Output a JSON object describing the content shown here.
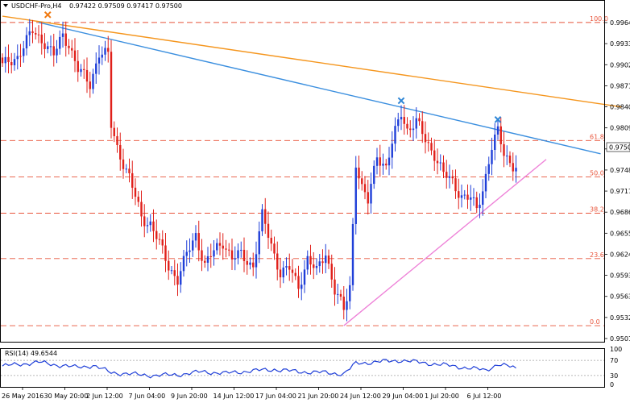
{
  "header": {
    "symbol": "USDCHF-Pro,H4",
    "ohlc": "0.97422 0.97509 0.97417 0.97500"
  },
  "colors": {
    "bull": "#1f3fd8",
    "bear": "#e0201a",
    "fib": "#e8543a",
    "trend_blue": "#3b8fdf",
    "trend_orange": "#f5961e",
    "support_pink": "#ee82d8",
    "marker_orange": "#f07a12",
    "marker_blue": "#2f86d6",
    "rsi_line": "#1f3fd8",
    "price_label_bg": "#ffffff"
  },
  "chart_data": {
    "type": "candlestick",
    "symbol": "USDCHF-Pro",
    "timeframe": "H4",
    "ylim": [
      0.9501,
      0.9974
    ],
    "y_ticks": [
      "0.99640",
      "0.99330",
      "0.99020",
      "0.98710",
      "0.98400",
      "0.98090",
      "0.97790",
      "0.97480",
      "0.97170",
      "0.96860",
      "0.96550",
      "0.96240",
      "0.95930",
      "0.95630",
      "0.95320",
      "0.95010"
    ],
    "x_labels": [
      "26 May 2016",
      "30 May 20:00",
      "2 Jun 12:00",
      "7 Jun 04:00",
      "9 Jun 20:00",
      "14 Jun 12:00",
      "17 Jun 04:00",
      "21 Jun 20:00",
      "24 Jun 12:00",
      "29 Jun 04:00",
      "1 Jul 20:00",
      "6 Jul 12:00"
    ],
    "current_price": "0.97500",
    "fib_levels": [
      {
        "label": "100.0",
        "value": 0.9958
      },
      {
        "label": "61.8",
        "value": 0.9789
      },
      {
        "label": "50.0",
        "value": 0.9737
      },
      {
        "label": "38.2",
        "value": 0.9685
      },
      {
        "label": "23.6",
        "value": 0.962
      },
      {
        "label": "0.0",
        "value": 0.9524
      }
    ],
    "trendlines": [
      {
        "name": "orange",
        "from": {
          "bar": 0,
          "price": 0.9967
        },
        "to": {
          "bar": 205,
          "price": 0.9837
        }
      },
      {
        "name": "blue",
        "from": {
          "bar": 12,
          "price": 0.9958
        },
        "to": {
          "bar": 198,
          "price": 0.977
        }
      },
      {
        "name": "pink",
        "from": {
          "bar": 113,
          "price": 0.9524
        },
        "to": {
          "bar": 180,
          "price": 0.9762
        }
      }
    ],
    "markers": [
      {
        "bar": 15,
        "price": 0.9969,
        "color": "orange"
      },
      {
        "bar": 132,
        "price": 0.9846,
        "color": "blue"
      },
      {
        "bar": 164,
        "price": 0.9819,
        "color": "blue"
      }
    ],
    "anchors": [
      [
        0,
        0.9895
      ],
      [
        5,
        0.991
      ],
      [
        10,
        0.9945
      ],
      [
        14,
        0.993
      ],
      [
        17,
        0.991
      ],
      [
        20,
        0.994
      ],
      [
        22,
        0.9928
      ],
      [
        25,
        0.989
      ],
      [
        29,
        0.987
      ],
      [
        32,
        0.9915
      ],
      [
        35,
        0.991
      ],
      [
        36,
        0.981
      ],
      [
        38,
        0.978
      ],
      [
        42,
        0.9735
      ],
      [
        46,
        0.968
      ],
      [
        49,
        0.967
      ],
      [
        52,
        0.964
      ],
      [
        55,
        0.961
      ],
      [
        58,
        0.959
      ],
      [
        61,
        0.9625
      ],
      [
        64,
        0.9655
      ],
      [
        67,
        0.961
      ],
      [
        70,
        0.963
      ],
      [
        73,
        0.9645
      ],
      [
        76,
        0.962
      ],
      [
        79,
        0.9625
      ],
      [
        83,
        0.961
      ],
      [
        86,
        0.968
      ],
      [
        89,
        0.964
      ],
      [
        92,
        0.96
      ],
      [
        95,
        0.9605
      ],
      [
        98,
        0.958
      ],
      [
        101,
        0.962
      ],
      [
        104,
        0.96
      ],
      [
        107,
        0.963
      ],
      [
        110,
        0.9575
      ],
      [
        113,
        0.9545
      ],
      [
        115,
        0.958
      ],
      [
        117,
        0.976
      ],
      [
        119,
        0.972
      ],
      [
        121,
        0.97
      ],
      [
        124,
        0.977
      ],
      [
        127,
        0.975
      ],
      [
        130,
        0.98
      ],
      [
        132,
        0.983
      ],
      [
        134,
        0.9805
      ],
      [
        137,
        0.9815
      ],
      [
        140,
        0.979
      ],
      [
        143,
        0.977
      ],
      [
        146,
        0.974
      ],
      [
        149,
        0.973
      ],
      [
        152,
        0.971
      ],
      [
        155,
        0.9705
      ],
      [
        157,
        0.969
      ],
      [
        159,
        0.972
      ],
      [
        162,
        0.978
      ],
      [
        164,
        0.98
      ],
      [
        166,
        0.977
      ],
      [
        168,
        0.976
      ],
      [
        170,
        0.975
      ]
    ],
    "rsi": {
      "label": "RSI(14) 49.6544",
      "current": 49.6544,
      "ylim": [
        0,
        100
      ],
      "ticks": [
        "100",
        "70",
        "30",
        "0"
      ],
      "anchors": [
        [
          0,
          55
        ],
        [
          6,
          60
        ],
        [
          12,
          65
        ],
        [
          18,
          58
        ],
        [
          24,
          52
        ],
        [
          30,
          56
        ],
        [
          36,
          38
        ],
        [
          42,
          34
        ],
        [
          50,
          30
        ],
        [
          58,
          32
        ],
        [
          66,
          40
        ],
        [
          74,
          36
        ],
        [
          82,
          42
        ],
        [
          90,
          46
        ],
        [
          98,
          40
        ],
        [
          106,
          38
        ],
        [
          113,
          34
        ],
        [
          117,
          62
        ],
        [
          124,
          66
        ],
        [
          132,
          70
        ],
        [
          140,
          63
        ],
        [
          148,
          56
        ],
        [
          156,
          48
        ],
        [
          160,
          44
        ],
        [
          164,
          60
        ],
        [
          170,
          49.65
        ]
      ]
    }
  }
}
